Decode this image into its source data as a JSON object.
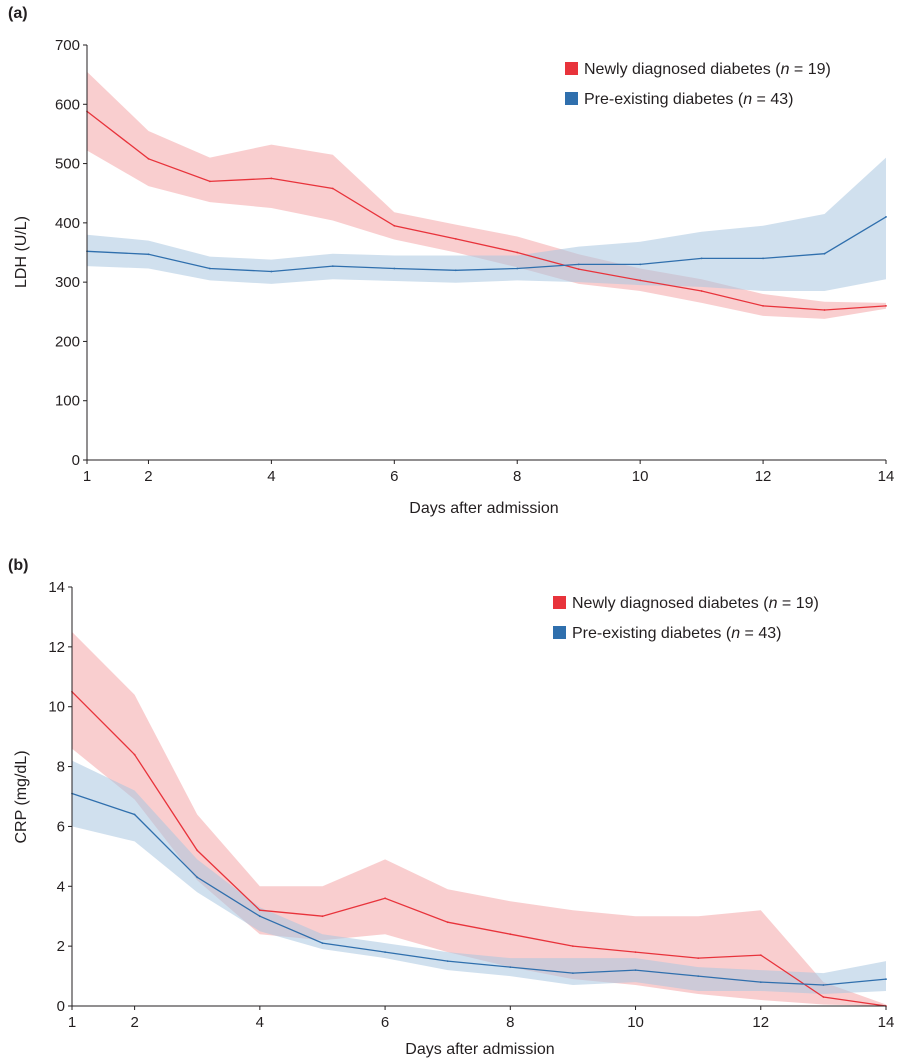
{
  "chart_data": [
    {
      "panel_label": "(a)",
      "type": "line",
      "xlabel": "Days after admission",
      "ylabel": "LDH (U/L)",
      "xlim": [
        1,
        14
      ],
      "ylim": [
        0,
        700
      ],
      "x_ticks": [
        1,
        2,
        4,
        6,
        8,
        10,
        12,
        14
      ],
      "y_ticks": [
        0,
        100,
        200,
        300,
        400,
        500,
        600,
        700
      ],
      "legend_position": "top-right",
      "series": [
        {
          "name": "Newly diagnosed diabetes",
          "n_label": "19",
          "color": "#e8333b",
          "band_color": "#f4a5a8",
          "x": [
            1,
            2,
            3,
            4,
            5,
            6,
            7,
            8,
            9,
            10,
            11,
            12,
            13,
            14
          ],
          "values": [
            588,
            508,
            470,
            475,
            458,
            395,
            373,
            350,
            322,
            303,
            285,
            260,
            253,
            260
          ],
          "lower": [
            522,
            462,
            435,
            425,
            404,
            372,
            350,
            325,
            297,
            285,
            265,
            243,
            238,
            255
          ],
          "upper": [
            655,
            555,
            510,
            532,
            515,
            418,
            397,
            377,
            347,
            323,
            305,
            280,
            267,
            265
          ]
        },
        {
          "name": "Pre-existing diabetes",
          "n_label": "43",
          "color": "#2f6fad",
          "band_color": "#a9c6e0",
          "x": [
            1,
            2,
            3,
            4,
            5,
            6,
            7,
            8,
            9,
            10,
            11,
            12,
            13,
            14
          ],
          "values": [
            352,
            347,
            323,
            318,
            327,
            323,
            320,
            323,
            330,
            330,
            340,
            340,
            348,
            410
          ],
          "lower": [
            327,
            323,
            303,
            297,
            305,
            302,
            299,
            303,
            300,
            295,
            292,
            285,
            285,
            305
          ],
          "upper": [
            380,
            370,
            343,
            338,
            348,
            345,
            345,
            345,
            360,
            368,
            385,
            395,
            415,
            510
          ]
        }
      ]
    },
    {
      "panel_label": "(b)",
      "type": "line",
      "xlabel": "Days after admission",
      "ylabel": "CRP (mg/dL)",
      "xlim": [
        1,
        14
      ],
      "ylim": [
        0,
        14
      ],
      "x_ticks": [
        1,
        2,
        4,
        6,
        8,
        10,
        12,
        14
      ],
      "y_ticks": [
        0,
        2,
        4,
        6,
        8,
        10,
        12,
        14
      ],
      "legend_position": "top-right",
      "series": [
        {
          "name": "Newly diagnosed diabetes",
          "n_label": "19",
          "color": "#e8333b",
          "band_color": "#f4a5a8",
          "x": [
            1,
            2,
            3,
            4,
            5,
            6,
            7,
            8,
            9,
            10,
            11,
            12,
            13,
            14
          ],
          "values": [
            10.5,
            8.4,
            5.2,
            3.2,
            3.0,
            3.6,
            2.8,
            2.4,
            2.0,
            1.8,
            1.6,
            1.7,
            0.3,
            0.0
          ],
          "lower": [
            8.6,
            6.9,
            4.2,
            2.4,
            2.2,
            2.4,
            1.8,
            1.3,
            0.9,
            0.7,
            0.4,
            0.2,
            0.05,
            0.0
          ],
          "upper": [
            12.5,
            10.4,
            6.4,
            4.0,
            4.0,
            4.9,
            3.9,
            3.5,
            3.2,
            3.0,
            3.0,
            3.2,
            0.8,
            0.05
          ]
        },
        {
          "name": "Pre-existing diabetes",
          "n_label": "43",
          "color": "#2f6fad",
          "band_color": "#a9c6e0",
          "x": [
            1,
            2,
            3,
            4,
            5,
            6,
            7,
            8,
            9,
            10,
            11,
            12,
            13,
            14
          ],
          "values": [
            7.1,
            6.4,
            4.3,
            3.0,
            2.1,
            1.8,
            1.5,
            1.3,
            1.1,
            1.2,
            1.0,
            0.8,
            0.7,
            0.9
          ],
          "lower": [
            6.0,
            5.5,
            3.8,
            2.5,
            1.9,
            1.6,
            1.2,
            1.0,
            0.7,
            0.8,
            0.5,
            0.5,
            0.4,
            0.5
          ],
          "upper": [
            8.2,
            7.2,
            4.9,
            3.3,
            2.4,
            2.1,
            1.8,
            1.6,
            1.6,
            1.6,
            1.3,
            1.2,
            1.1,
            1.5
          ]
        }
      ]
    }
  ]
}
